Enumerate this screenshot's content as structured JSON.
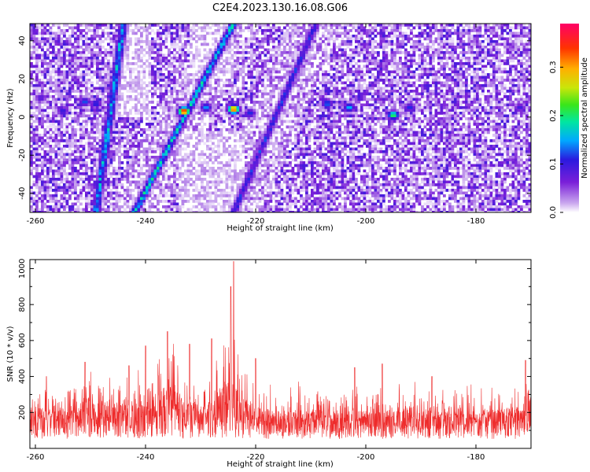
{
  "title": "C2E4.2023.130.16.08.G06",
  "colors": {
    "snr_line": "#ee2b2b",
    "colormap": [
      "#ffffff",
      "#c9a6ee",
      "#7a1fd9",
      "#2a1adf",
      "#00a8ff",
      "#00e6a0",
      "#39e61a",
      "#c9e60a",
      "#ffb000",
      "#ff3300",
      "#ff0066"
    ]
  },
  "chart_data": [
    {
      "type": "heatmap",
      "xlabel": "Height of straight line (km)",
      "ylabel": "Frequency (Hz)",
      "xlim": [
        -261,
        -170
      ],
      "ylim": [
        -50,
        49
      ],
      "xticks": [
        -260,
        -240,
        -220,
        -200,
        -180
      ],
      "yticks": [
        -40,
        -20,
        0,
        20,
        40
      ],
      "colorbar": {
        "label": "Normalized spectral amplitude",
        "range": [
          0.0,
          0.39
        ],
        "ticks": [
          "0.0",
          "0.1",
          "0.2",
          "0.3"
        ],
        "tick_values": [
          0.0,
          0.1,
          0.2,
          0.3
        ]
      },
      "features": {
        "diagonal_ridges": [
          {
            "x_at_f_min": -242,
            "x_at_f_max": -224,
            "peak": 0.2
          },
          {
            "x_at_f_min": -224,
            "x_at_f_max": -209,
            "peak": 0.13
          },
          {
            "x_at_f_min": -249,
            "x_at_f_max": -244,
            "peak": 0.18
          }
        ],
        "zero_frequency_blobs": [
          {
            "x": -233,
            "f": 3,
            "value": 0.37
          },
          {
            "x": -224,
            "f": 4,
            "value": 0.34
          },
          {
            "x": -229,
            "f": 5,
            "value": 0.15
          },
          {
            "x": -221,
            "f": 2,
            "value": 0.12
          },
          {
            "x": -195,
            "f": 1,
            "value": 0.22
          },
          {
            "x": -203,
            "f": 5,
            "value": 0.16
          },
          {
            "x": -207,
            "f": 7,
            "value": 0.14
          },
          {
            "x": -251,
            "f": 8,
            "value": 0.13
          },
          {
            "x": -255,
            "f": 3,
            "value": 0.11
          },
          {
            "x": -249,
            "f": 7,
            "value": 0.12
          },
          {
            "x": -192,
            "f": 5,
            "value": 0.12
          },
          {
            "x": -172,
            "f": 5,
            "value": 0.1
          },
          {
            "x": -259,
            "f": 10,
            "value": 0.09
          }
        ]
      }
    },
    {
      "type": "line",
      "series_type": "snr_trace",
      "xlabel": "Height of straight line (km)",
      "ylabel": "SNR (10 * v/v)",
      "xlim": [
        -261,
        -170
      ],
      "ylim": [
        0,
        1050
      ],
      "xticks": [
        -260,
        -240,
        -220,
        -200,
        -180
      ],
      "yticks": [
        200,
        400,
        600,
        800,
        1000
      ],
      "baseline": 150,
      "peaks": [
        {
          "x": -224,
          "y": 1040
        },
        {
          "x": -224.5,
          "y": 900
        },
        {
          "x": -236,
          "y": 650
        },
        {
          "x": -228,
          "y": 610
        },
        {
          "x": -232,
          "y": 580
        },
        {
          "x": -240,
          "y": 570
        },
        {
          "x": -251,
          "y": 480
        },
        {
          "x": -243,
          "y": 460
        },
        {
          "x": -220,
          "y": 500
        },
        {
          "x": -202,
          "y": 450
        },
        {
          "x": -197,
          "y": 470
        },
        {
          "x": -171,
          "y": 490
        },
        {
          "x": -258,
          "y": 400
        },
        {
          "x": -188,
          "y": 400
        }
      ]
    }
  ]
}
